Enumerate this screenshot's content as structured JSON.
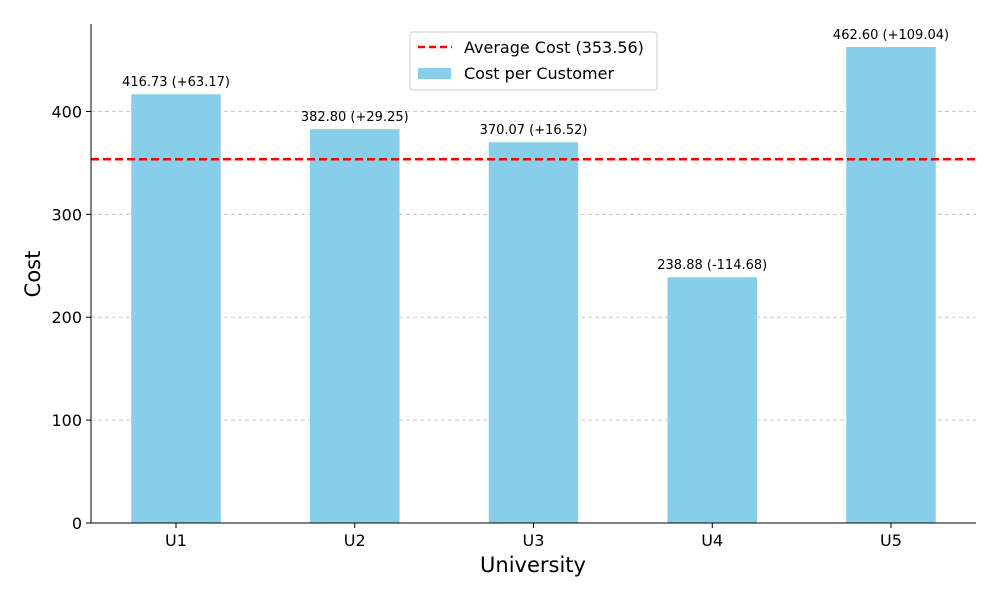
{
  "chart_data": {
    "type": "bar",
    "categories": [
      "U1",
      "U2",
      "U3",
      "U4",
      "U5"
    ],
    "series": [
      {
        "name": "Cost per Customer",
        "values": [
          416.73,
          382.8,
          370.07,
          238.88,
          462.6
        ],
        "color": "#87CEEB"
      }
    ],
    "data_labels": [
      "416.73 (+63.17)",
      "382.80 (+29.25)",
      "370.07 (+16.52)",
      "238.88 (-114.68)",
      "462.60 (+109.04)"
    ],
    "reference_line": {
      "name": "Average Cost (353.56)",
      "value": 353.56,
      "color": "#FF0000",
      "style": "dashed"
    },
    "title": "",
    "xlabel": "University",
    "ylabel": "Cost",
    "ylim": [
      0,
      485
    ],
    "yticks": [
      0,
      100,
      200,
      300,
      400
    ],
    "grid": "y-dashed",
    "legend_position": "top-center"
  }
}
